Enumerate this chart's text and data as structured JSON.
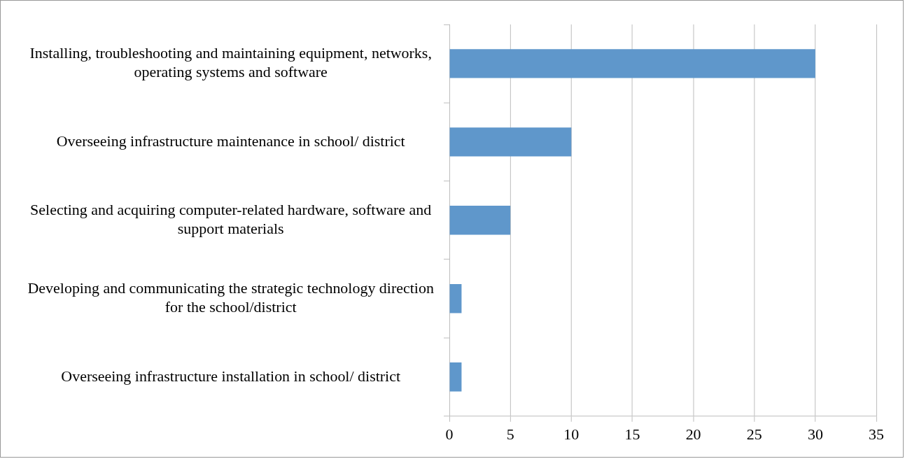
{
  "chart_data": {
    "type": "bar",
    "orientation": "horizontal",
    "categories": [
      "Installing, troubleshooting and maintaining equipment, networks, operating systems and software",
      "Overseeing infrastructure maintenance in school/ district",
      "Selecting and acquiring computer-related hardware, software and support materials",
      "Developing and communicating the strategic technology direction for the school/district",
      "Overseeing infrastructure installation in school/ district"
    ],
    "values": [
      30,
      10,
      5,
      1,
      1
    ],
    "color": "#5f97cb",
    "xlim": [
      0,
      35
    ],
    "xticks": [
      0,
      5,
      10,
      15,
      20,
      25,
      30,
      35
    ],
    "grid": "x",
    "legend": false
  }
}
